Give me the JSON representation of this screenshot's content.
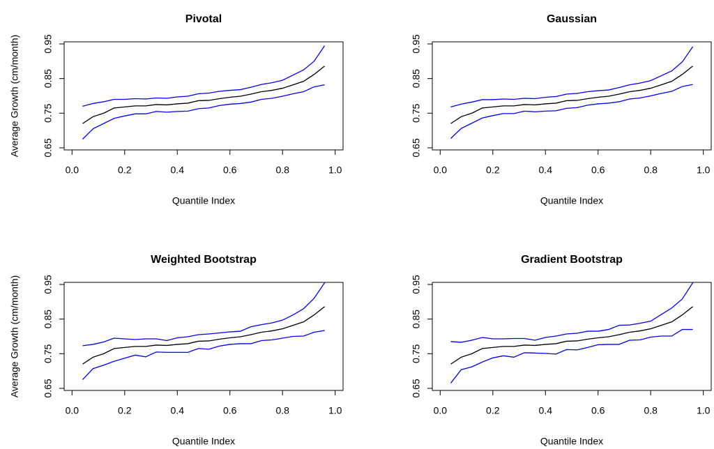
{
  "chart_data": [
    {
      "type": "line",
      "title": "Pivotal",
      "xlabel": "Quantile Index",
      "ylabel": "Average Growth (cm/month)",
      "x": [
        0.04,
        0.08,
        0.12,
        0.16,
        0.2,
        0.24,
        0.28,
        0.32,
        0.36,
        0.4,
        0.44,
        0.48,
        0.52,
        0.56,
        0.6,
        0.64,
        0.68,
        0.72,
        0.76,
        0.8,
        0.84,
        0.88,
        0.92,
        0.96
      ],
      "series": [
        {
          "color": "#000000",
          "values": [
            0.72,
            0.74,
            0.75,
            0.765,
            0.768,
            0.771,
            0.771,
            0.775,
            0.774,
            0.777,
            0.779,
            0.786,
            0.787,
            0.792,
            0.796,
            0.799,
            0.805,
            0.812,
            0.816,
            0.822,
            0.832,
            0.842,
            0.862,
            0.886
          ]
        },
        {
          "color": "#0000ff",
          "values": [
            0.77,
            0.778,
            0.783,
            0.79,
            0.79,
            0.792,
            0.791,
            0.794,
            0.793,
            0.797,
            0.799,
            0.806,
            0.808,
            0.813,
            0.816,
            0.818,
            0.825,
            0.833,
            0.838,
            0.845,
            0.86,
            0.875,
            0.9,
            0.945
          ]
        },
        {
          "color": "#0000ff",
          "values": [
            0.675,
            0.705,
            0.72,
            0.735,
            0.742,
            0.748,
            0.748,
            0.755,
            0.753,
            0.755,
            0.756,
            0.763,
            0.765,
            0.772,
            0.776,
            0.778,
            0.782,
            0.79,
            0.793,
            0.799,
            0.806,
            0.812,
            0.826,
            0.832
          ]
        }
      ],
      "xlim": [
        -0.03,
        1.03
      ],
      "ylim": [
        0.644,
        0.956
      ],
      "xticks": [
        {
          "value": 0,
          "label": "0.0"
        },
        0.2,
        0.4,
        0.6,
        0.8,
        {
          "value": 1,
          "label": "1.0"
        }
      ],
      "yticks": [
        0.65,
        0.75,
        0.85,
        0.95
      ]
    },
    {
      "type": "line",
      "title": "Gaussian",
      "xlabel": "Quantile Index",
      "x": [
        0.04,
        0.08,
        0.12,
        0.16,
        0.2,
        0.24,
        0.28,
        0.32,
        0.36,
        0.4,
        0.44,
        0.48,
        0.52,
        0.56,
        0.6,
        0.64,
        0.68,
        0.72,
        0.76,
        0.8,
        0.84,
        0.88,
        0.92,
        0.96
      ],
      "series": [
        {
          "color": "#000000",
          "values": [
            0.72,
            0.74,
            0.75,
            0.765,
            0.768,
            0.771,
            0.771,
            0.775,
            0.774,
            0.777,
            0.779,
            0.786,
            0.787,
            0.792,
            0.796,
            0.799,
            0.805,
            0.812,
            0.816,
            0.822,
            0.832,
            0.842,
            0.862,
            0.886
          ]
        },
        {
          "color": "#0000ff",
          "values": [
            0.768,
            0.776,
            0.782,
            0.789,
            0.789,
            0.791,
            0.79,
            0.793,
            0.792,
            0.796,
            0.798,
            0.805,
            0.807,
            0.812,
            0.815,
            0.817,
            0.824,
            0.832,
            0.837,
            0.844,
            0.858,
            0.872,
            0.898,
            0.942
          ]
        },
        {
          "color": "#0000ff",
          "values": [
            0.677,
            0.706,
            0.721,
            0.736,
            0.743,
            0.749,
            0.749,
            0.756,
            0.754,
            0.756,
            0.757,
            0.764,
            0.766,
            0.773,
            0.777,
            0.779,
            0.783,
            0.791,
            0.794,
            0.8,
            0.807,
            0.813,
            0.827,
            0.833
          ]
        }
      ],
      "xlim": [
        -0.03,
        1.03
      ],
      "ylim": [
        0.644,
        0.956
      ],
      "xticks": [
        {
          "value": 0,
          "label": "0.0"
        },
        0.2,
        0.4,
        0.6,
        0.8,
        {
          "value": 1,
          "label": "1.0"
        }
      ],
      "yticks": [
        0.65,
        0.75,
        0.85,
        0.95
      ]
    },
    {
      "type": "line",
      "title": "Weighted Bootstrap",
      "xlabel": "Quantile Index",
      "ylabel": "Average Growth (cm/month)",
      "x": [
        0.04,
        0.08,
        0.12,
        0.16,
        0.2,
        0.24,
        0.28,
        0.32,
        0.36,
        0.4,
        0.44,
        0.48,
        0.52,
        0.56,
        0.6,
        0.64,
        0.68,
        0.72,
        0.76,
        0.8,
        0.84,
        0.88,
        0.92,
        0.96
      ],
      "series": [
        {
          "color": "#000000",
          "values": [
            0.72,
            0.74,
            0.75,
            0.765,
            0.768,
            0.771,
            0.771,
            0.775,
            0.774,
            0.777,
            0.779,
            0.786,
            0.787,
            0.792,
            0.796,
            0.799,
            0.805,
            0.812,
            0.816,
            0.822,
            0.832,
            0.842,
            0.862,
            0.886
          ]
        },
        {
          "color": "#0000ff",
          "values": [
            0.773,
            0.777,
            0.784,
            0.795,
            0.793,
            0.791,
            0.793,
            0.793,
            0.788,
            0.796,
            0.799,
            0.805,
            0.807,
            0.81,
            0.813,
            0.815,
            0.828,
            0.834,
            0.839,
            0.847,
            0.862,
            0.88,
            0.91,
            0.955
          ]
        },
        {
          "color": "#0000ff",
          "values": [
            0.675,
            0.707,
            0.717,
            0.728,
            0.737,
            0.746,
            0.741,
            0.755,
            0.754,
            0.754,
            0.754,
            0.765,
            0.763,
            0.772,
            0.777,
            0.779,
            0.779,
            0.788,
            0.79,
            0.795,
            0.8,
            0.801,
            0.812,
            0.817
          ]
        }
      ],
      "xlim": [
        -0.03,
        1.03
      ],
      "ylim": [
        0.644,
        0.956
      ],
      "xticks": [
        {
          "value": 0,
          "label": "0.0"
        },
        0.2,
        0.4,
        0.6,
        0.8,
        {
          "value": 1,
          "label": "1.0"
        }
      ],
      "yticks": [
        0.65,
        0.75,
        0.85,
        0.95
      ]
    },
    {
      "type": "line",
      "title": "Gradient Bootstrap",
      "xlabel": "Quantile Index",
      "x": [
        0.04,
        0.08,
        0.12,
        0.16,
        0.2,
        0.24,
        0.28,
        0.32,
        0.36,
        0.4,
        0.44,
        0.48,
        0.52,
        0.56,
        0.6,
        0.64,
        0.68,
        0.72,
        0.76,
        0.8,
        0.84,
        0.88,
        0.92,
        0.96
      ],
      "series": [
        {
          "color": "#000000",
          "values": [
            0.72,
            0.74,
            0.75,
            0.765,
            0.768,
            0.771,
            0.771,
            0.775,
            0.774,
            0.777,
            0.779,
            0.786,
            0.787,
            0.792,
            0.796,
            0.799,
            0.805,
            0.812,
            0.816,
            0.822,
            0.832,
            0.842,
            0.862,
            0.886
          ]
        },
        {
          "color": "#0000ff",
          "values": [
            0.785,
            0.783,
            0.789,
            0.797,
            0.793,
            0.793,
            0.794,
            0.794,
            0.789,
            0.797,
            0.801,
            0.807,
            0.809,
            0.815,
            0.815,
            0.82,
            0.832,
            0.833,
            0.838,
            0.844,
            0.863,
            0.882,
            0.908,
            0.955
          ]
        },
        {
          "color": "#0000ff",
          "values": [
            0.665,
            0.704,
            0.712,
            0.726,
            0.738,
            0.744,
            0.74,
            0.753,
            0.752,
            0.751,
            0.749,
            0.762,
            0.761,
            0.768,
            0.776,
            0.777,
            0.777,
            0.789,
            0.79,
            0.798,
            0.801,
            0.801,
            0.82,
            0.82
          ]
        }
      ],
      "xlim": [
        -0.03,
        1.03
      ],
      "ylim": [
        0.644,
        0.956
      ],
      "xticks": [
        {
          "value": 0,
          "label": "0.0"
        },
        0.2,
        0.4,
        0.6,
        0.8,
        {
          "value": 1,
          "label": "1.0"
        }
      ],
      "yticks": [
        0.65,
        0.75,
        0.85,
        0.95
      ]
    }
  ]
}
